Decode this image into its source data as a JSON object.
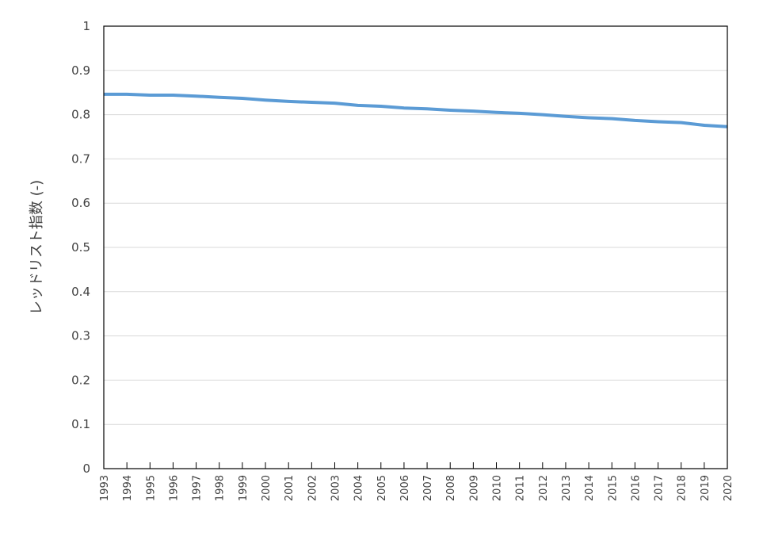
{
  "chart_data": {
    "type": "line",
    "title": "",
    "xlabel": "",
    "ylabel": "レッドリスト指数 (-)",
    "ylim": [
      0,
      1
    ],
    "yticks": [
      "0",
      "0.1",
      "0.2",
      "0.3",
      "0.4",
      "0.5",
      "0.6",
      "0.7",
      "0.8",
      "0.9",
      "1"
    ],
    "grid": true,
    "categories": [
      "1993",
      "1994",
      "1995",
      "1996",
      "1997",
      "1998",
      "1999",
      "2000",
      "2001",
      "2002",
      "2003",
      "2004",
      "2005",
      "2006",
      "2007",
      "2008",
      "2009",
      "2010",
      "2011",
      "2012",
      "2013",
      "2014",
      "2015",
      "2016",
      "2017",
      "2018",
      "2019",
      "2020"
    ],
    "series": [
      {
        "name": "",
        "color": "#5b9bd5",
        "values": [
          0.846,
          0.846,
          0.844,
          0.844,
          0.842,
          0.839,
          0.837,
          0.833,
          0.83,
          0.828,
          0.826,
          0.821,
          0.819,
          0.815,
          0.813,
          0.81,
          0.808,
          0.805,
          0.803,
          0.8,
          0.796,
          0.793,
          0.791,
          0.787,
          0.784,
          0.782,
          0.776,
          0.773
        ]
      }
    ],
    "colors": {
      "line": "#5b9bd5",
      "grid": "#d9d9d9",
      "axis": "#000000",
      "text": "#404040"
    }
  }
}
